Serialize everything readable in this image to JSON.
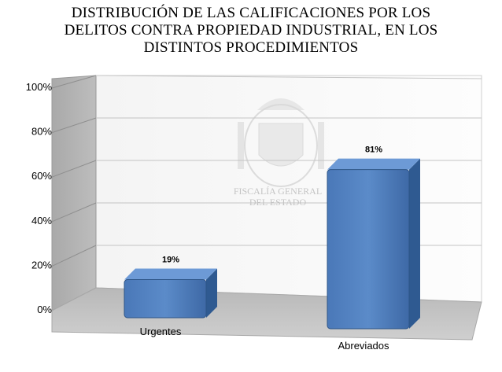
{
  "chart_data": {
    "type": "bar",
    "title_lines": [
      "DISTRIBUCIÓN DE LAS CALIFICACIONES POR LOS",
      "DELITOS CONTRA PROPIEDAD INDUSTRIAL, EN LOS",
      "DISTINTOS PROCEDIMIENTOS"
    ],
    "categories": [
      "Urgentes",
      "Abreviados"
    ],
    "values": [
      19,
      81
    ],
    "data_labels": [
      "19%",
      "81%"
    ],
    "ylim": [
      0,
      100
    ],
    "yticks": [
      0,
      20,
      40,
      60,
      80,
      100
    ],
    "ytick_labels": [
      "0%",
      "20%",
      "40%",
      "60%",
      "80%",
      "100%"
    ],
    "xlabel": "",
    "ylabel": "",
    "grid": true,
    "legend": "none",
    "style": "3d",
    "bar_color": "#4f81bd"
  },
  "watermark": {
    "line1": "FISCALÍA GENERAL",
    "line2": "DEL ESTADO"
  }
}
